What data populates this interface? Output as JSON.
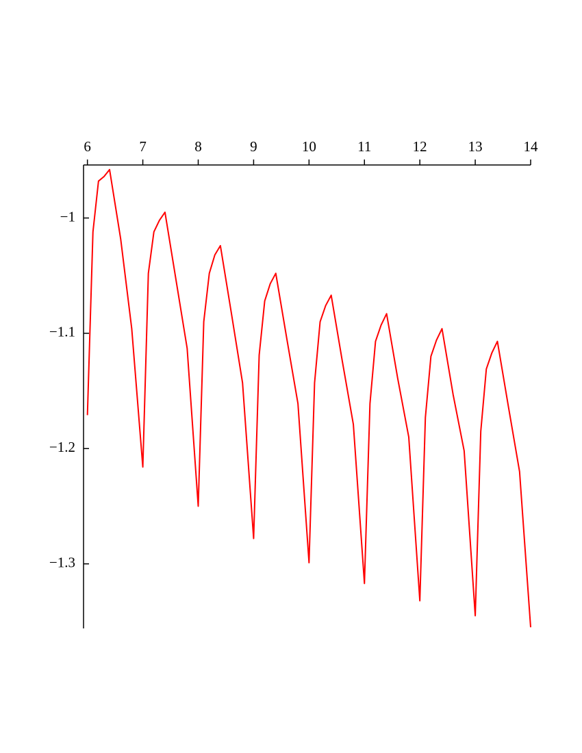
{
  "chart_data": {
    "type": "line",
    "x": [
      6,
      6.1,
      6.2,
      6.3,
      6.4,
      6.6,
      6.8,
      7,
      7.1,
      7.2,
      7.3,
      7.4,
      7.6,
      7.8,
      8,
      8.1,
      8.2,
      8.3,
      8.4,
      8.6,
      8.8,
      9,
      9.1,
      9.2,
      9.3,
      9.4,
      9.6,
      9.8,
      10,
      10.1,
      10.2,
      10.3,
      10.4,
      10.6,
      10.8,
      11,
      11.1,
      11.2,
      11.3,
      11.4,
      11.6,
      11.8,
      12,
      12.1,
      12.2,
      12.3,
      12.4,
      12.6,
      12.8,
      13,
      13.1,
      13.2,
      13.3,
      13.4,
      13.6,
      13.8,
      14
    ],
    "series": [
      {
        "color": "#ff0000",
        "values": [
          -1.171,
          -1.012,
          -0.968,
          -0.964,
          -0.958,
          -1.018,
          -1.096,
          -1.216,
          -1.048,
          -1.012,
          -1.002,
          -0.995,
          -1.054,
          -1.113,
          -1.25,
          -1.09,
          -1.048,
          -1.032,
          -1.024,
          -1.083,
          -1.143,
          -1.278,
          -1.119,
          -1.072,
          -1.057,
          -1.048,
          -1.105,
          -1.161,
          -1.299,
          -1.143,
          -1.09,
          -1.076,
          -1.067,
          -1.124,
          -1.179,
          -1.317,
          -1.161,
          -1.107,
          -1.093,
          -1.083,
          -1.139,
          -1.19,
          -1.332,
          -1.173,
          -1.12,
          -1.106,
          -1.096,
          -1.153,
          -1.202,
          -1.345,
          -1.185,
          -1.131,
          -1.117,
          -1.107,
          -1.164,
          -1.22,
          -1.355
        ]
      }
    ],
    "xlim": [
      5.93,
      14
    ],
    "xticks": [
      6,
      7,
      8,
      9,
      10,
      11,
      12,
      13,
      14
    ],
    "ylim": [
      -1.356,
      -0.954
    ],
    "yticks": [
      {
        "value": -1,
        "label": "−1"
      },
      {
        "value": -1.1,
        "label": "−1.1"
      },
      {
        "value": -1.2,
        "label": "−1.2"
      },
      {
        "value": -1.3,
        "label": "−1.3"
      }
    ]
  }
}
